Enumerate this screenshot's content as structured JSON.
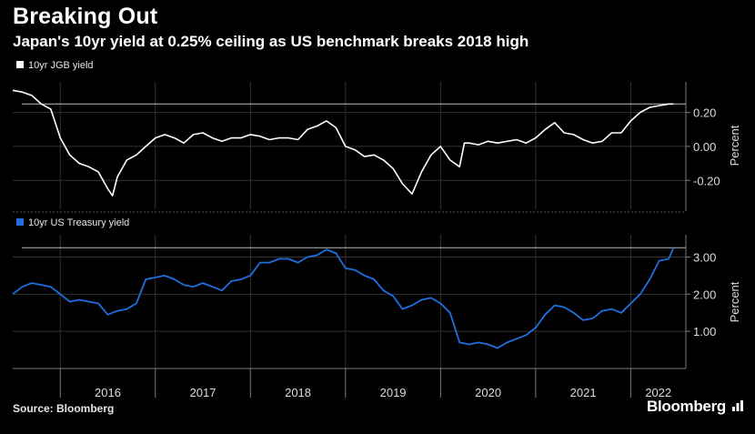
{
  "header": {
    "title": "Breaking Out",
    "subtitle": "Japan's 10yr yield at 0.25% ceiling as US benchmark breaks 2018 high"
  },
  "footer": {
    "source": "Source: Bloomberg",
    "brand": "Bloomberg"
  },
  "colors": {
    "background": "#000000",
    "jgb_line": "#ffffff",
    "ust_line": "#1f6fe0",
    "grid": "#3a3a3a",
    "reference": "#bfbfbf"
  },
  "chart_data": [
    {
      "type": "line",
      "legend": "10yr JGB yield",
      "ylabel": "Percent",
      "ylim": [
        -0.37,
        0.38
      ],
      "yticks": [
        0.2,
        0.0,
        -0.2
      ],
      "ytick_labels": [
        "0.20",
        "0.00",
        "-0.20"
      ],
      "grid": true,
      "reference_line": 0.25,
      "series": [
        {
          "values": [
            [
              2015.5,
              0.33
            ],
            [
              2015.6,
              0.32
            ],
            [
              2015.7,
              0.3
            ],
            [
              2015.8,
              0.25
            ],
            [
              2015.9,
              0.22
            ],
            [
              2016.0,
              0.05
            ],
            [
              2016.1,
              -0.05
            ],
            [
              2016.2,
              -0.1
            ],
            [
              2016.3,
              -0.12
            ],
            [
              2016.4,
              -0.15
            ],
            [
              2016.5,
              -0.25
            ],
            [
              2016.55,
              -0.29
            ],
            [
              2016.6,
              -0.18
            ],
            [
              2016.7,
              -0.08
            ],
            [
              2016.8,
              -0.05
            ],
            [
              2016.9,
              0.0
            ],
            [
              2017.0,
              0.05
            ],
            [
              2017.1,
              0.07
            ],
            [
              2017.2,
              0.05
            ],
            [
              2017.3,
              0.02
            ],
            [
              2017.4,
              0.07
            ],
            [
              2017.5,
              0.08
            ],
            [
              2017.6,
              0.05
            ],
            [
              2017.7,
              0.03
            ],
            [
              2017.8,
              0.05
            ],
            [
              2017.9,
              0.05
            ],
            [
              2018.0,
              0.07
            ],
            [
              2018.1,
              0.06
            ],
            [
              2018.2,
              0.04
            ],
            [
              2018.3,
              0.05
            ],
            [
              2018.4,
              0.05
            ],
            [
              2018.5,
              0.04
            ],
            [
              2018.6,
              0.1
            ],
            [
              2018.7,
              0.12
            ],
            [
              2018.8,
              0.15
            ],
            [
              2018.9,
              0.11
            ],
            [
              2019.0,
              0.0
            ],
            [
              2019.1,
              -0.02
            ],
            [
              2019.2,
              -0.06
            ],
            [
              2019.3,
              -0.05
            ],
            [
              2019.4,
              -0.08
            ],
            [
              2019.5,
              -0.13
            ],
            [
              2019.6,
              -0.22
            ],
            [
              2019.7,
              -0.28
            ],
            [
              2019.8,
              -0.15
            ],
            [
              2019.9,
              -0.05
            ],
            [
              2020.0,
              0.0
            ],
            [
              2020.1,
              -0.08
            ],
            [
              2020.2,
              -0.12
            ],
            [
              2020.25,
              0.02
            ],
            [
              2020.3,
              0.02
            ],
            [
              2020.4,
              0.01
            ],
            [
              2020.5,
              0.03
            ],
            [
              2020.6,
              0.02
            ],
            [
              2020.7,
              0.03
            ],
            [
              2020.8,
              0.04
            ],
            [
              2020.9,
              0.02
            ],
            [
              2021.0,
              0.05
            ],
            [
              2021.1,
              0.1
            ],
            [
              2021.2,
              0.14
            ],
            [
              2021.3,
              0.08
            ],
            [
              2021.4,
              0.07
            ],
            [
              2021.5,
              0.04
            ],
            [
              2021.6,
              0.02
            ],
            [
              2021.7,
              0.03
            ],
            [
              2021.8,
              0.08
            ],
            [
              2021.9,
              0.08
            ],
            [
              2022.0,
              0.15
            ],
            [
              2022.1,
              0.2
            ],
            [
              2022.2,
              0.23
            ],
            [
              2022.3,
              0.24
            ],
            [
              2022.4,
              0.25
            ],
            [
              2022.45,
              0.25
            ]
          ]
        }
      ]
    },
    {
      "type": "line",
      "legend": "10yr US Treasury yield",
      "ylabel": "Percent",
      "ylim": [
        0.0,
        3.6
      ],
      "yticks": [
        3.0,
        2.0,
        1.0
      ],
      "ytick_labels": [
        "3.00",
        "2.00",
        "1.00"
      ],
      "grid": true,
      "reference_line": 3.25,
      "xlim": [
        2015.5,
        2022.58
      ],
      "xticks": [
        2016,
        2017,
        2018,
        2019,
        2020,
        2021,
        2022
      ],
      "xtick_labels": [
        "2016",
        "2017",
        "2018",
        "2019",
        "2020",
        "2021",
        "2022"
      ],
      "series": [
        {
          "values": [
            [
              2015.5,
              2.0
            ],
            [
              2015.6,
              2.2
            ],
            [
              2015.7,
              2.3
            ],
            [
              2015.8,
              2.25
            ],
            [
              2015.9,
              2.2
            ],
            [
              2016.0,
              2.0
            ],
            [
              2016.1,
              1.8
            ],
            [
              2016.2,
              1.85
            ],
            [
              2016.3,
              1.8
            ],
            [
              2016.4,
              1.75
            ],
            [
              2016.5,
              1.45
            ],
            [
              2016.6,
              1.55
            ],
            [
              2016.7,
              1.6
            ],
            [
              2016.8,
              1.75
            ],
            [
              2016.9,
              2.4
            ],
            [
              2017.0,
              2.45
            ],
            [
              2017.1,
              2.5
            ],
            [
              2017.2,
              2.4
            ],
            [
              2017.3,
              2.25
            ],
            [
              2017.4,
              2.2
            ],
            [
              2017.5,
              2.3
            ],
            [
              2017.6,
              2.2
            ],
            [
              2017.7,
              2.1
            ],
            [
              2017.8,
              2.35
            ],
            [
              2017.9,
              2.4
            ],
            [
              2018.0,
              2.5
            ],
            [
              2018.1,
              2.85
            ],
            [
              2018.2,
              2.85
            ],
            [
              2018.3,
              2.95
            ],
            [
              2018.4,
              2.95
            ],
            [
              2018.5,
              2.85
            ],
            [
              2018.6,
              3.0
            ],
            [
              2018.7,
              3.05
            ],
            [
              2018.8,
              3.2
            ],
            [
              2018.9,
              3.1
            ],
            [
              2019.0,
              2.7
            ],
            [
              2019.1,
              2.65
            ],
            [
              2019.2,
              2.5
            ],
            [
              2019.3,
              2.4
            ],
            [
              2019.4,
              2.1
            ],
            [
              2019.5,
              1.95
            ],
            [
              2019.6,
              1.6
            ],
            [
              2019.7,
              1.7
            ],
            [
              2019.8,
              1.85
            ],
            [
              2019.9,
              1.9
            ],
            [
              2020.0,
              1.75
            ],
            [
              2020.1,
              1.5
            ],
            [
              2020.2,
              0.7
            ],
            [
              2020.3,
              0.65
            ],
            [
              2020.4,
              0.7
            ],
            [
              2020.5,
              0.65
            ],
            [
              2020.6,
              0.55
            ],
            [
              2020.7,
              0.7
            ],
            [
              2020.8,
              0.8
            ],
            [
              2020.9,
              0.9
            ],
            [
              2021.0,
              1.1
            ],
            [
              2021.1,
              1.45
            ],
            [
              2021.2,
              1.7
            ],
            [
              2021.3,
              1.65
            ],
            [
              2021.4,
              1.5
            ],
            [
              2021.5,
              1.3
            ],
            [
              2021.6,
              1.35
            ],
            [
              2021.7,
              1.55
            ],
            [
              2021.8,
              1.6
            ],
            [
              2021.9,
              1.5
            ],
            [
              2022.0,
              1.75
            ],
            [
              2022.1,
              2.0
            ],
            [
              2022.2,
              2.4
            ],
            [
              2022.3,
              2.9
            ],
            [
              2022.4,
              2.95
            ],
            [
              2022.45,
              3.25
            ]
          ]
        }
      ]
    }
  ]
}
